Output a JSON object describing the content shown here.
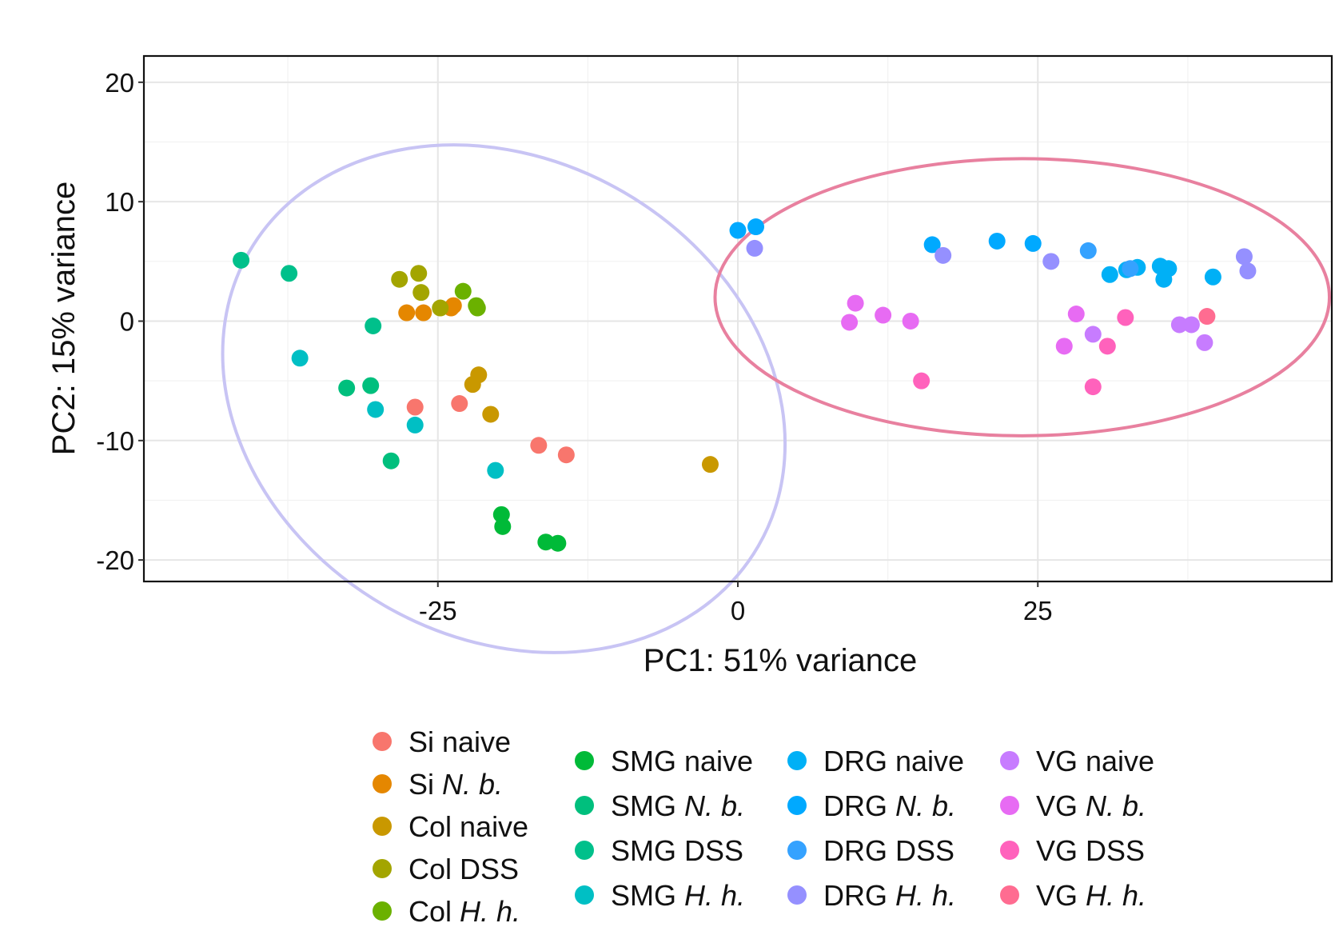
{
  "chart_data": {
    "type": "scatter",
    "xlabel": "PC1: 51% variance",
    "ylabel": "PC2: 15% variance",
    "xlim": [
      -49.5,
      49.5
    ],
    "ylim": [
      -21.8,
      22.2
    ],
    "xticks": [
      -25,
      0,
      25
    ],
    "xtick_labels": [
      "-25",
      "0",
      "25"
    ],
    "yticks": [
      20,
      10,
      0,
      -10,
      -20
    ],
    "ytick_labels": [
      "20",
      "10",
      "0",
      "-10",
      "-20"
    ],
    "grid": true,
    "legend_position": "bottom",
    "series": [
      {
        "name": "Si naive",
        "label_parts": [
          {
            "text": "Si naive",
            "italic": false
          }
        ],
        "color": "#F8766D",
        "x": [
          -26.9,
          -23.2,
          -16.6,
          -14.3
        ],
        "y": [
          -7.2,
          -6.9,
          -10.4,
          -11.2
        ]
      },
      {
        "name": "Si N. b.",
        "label_parts": [
          {
            "text": "Si ",
            "italic": false
          },
          {
            "text": "N. b.",
            "italic": true
          }
        ],
        "color": "#E58700",
        "x": [
          -27.6,
          -26.2,
          -23.7,
          -23.9
        ],
        "y": [
          0.7,
          0.7,
          1.3,
          1.1
        ]
      },
      {
        "name": "Col naive",
        "label_parts": [
          {
            "text": "Col naive",
            "italic": false
          }
        ],
        "color": "#C99800",
        "x": [
          -22.1,
          -21.6,
          -20.6,
          -2.3
        ],
        "y": [
          -5.3,
          -4.5,
          -7.8,
          -12.0
        ]
      },
      {
        "name": "Col DSS",
        "label_parts": [
          {
            "text": "Col DSS",
            "italic": false
          }
        ],
        "color": "#A3A500",
        "x": [
          -28.2,
          -26.6,
          -26.4,
          -24.8
        ],
        "y": [
          3.5,
          4.0,
          2.4,
          1.1
        ]
      },
      {
        "name": "Col H. h.",
        "label_parts": [
          {
            "text": "Col ",
            "italic": false
          },
          {
            "text": "H. h.",
            "italic": true
          }
        ],
        "color": "#6BB100",
        "x": [
          -22.9,
          -21.8,
          -21.7
        ],
        "y": [
          2.5,
          1.3,
          1.1
        ]
      },
      {
        "name": "SMG naive",
        "label_parts": [
          {
            "text": "SMG naive",
            "italic": false
          }
        ],
        "color": "#00BA38",
        "x": [
          -19.7,
          -19.6,
          -16.0,
          -15.0
        ],
        "y": [
          -16.2,
          -17.2,
          -18.5,
          -18.6
        ]
      },
      {
        "name": "SMG N. b.",
        "label_parts": [
          {
            "text": "SMG ",
            "italic": false
          },
          {
            "text": "N. b.",
            "italic": true
          }
        ],
        "color": "#00BF7D",
        "x": [
          -32.6,
          -30.6,
          -28.9
        ],
        "y": [
          -5.6,
          -5.4,
          -11.7
        ]
      },
      {
        "name": "SMG DSS",
        "label_parts": [
          {
            "text": "SMG DSS",
            "italic": false
          }
        ],
        "color": "#00C08B",
        "x": [
          -41.4,
          -37.4,
          -30.4
        ],
        "y": [
          5.1,
          4.0,
          -0.4
        ]
      },
      {
        "name": "SMG H. h.",
        "label_parts": [
          {
            "text": "SMG ",
            "italic": false
          },
          {
            "text": "H. h.",
            "italic": true
          }
        ],
        "color": "#00BFC4",
        "x": [
          -36.5,
          -30.2,
          -26.9,
          -20.2
        ],
        "y": [
          -3.1,
          -7.4,
          -8.7,
          -12.5
        ]
      },
      {
        "name": "DRG naive",
        "label_parts": [
          {
            "text": "DRG naive",
            "italic": false
          }
        ],
        "color": "#00B0F6",
        "x": [
          31.0,
          32.4,
          33.3,
          35.2,
          35.5,
          35.9,
          39.6
        ],
        "y": [
          3.9,
          4.3,
          4.5,
          4.6,
          3.5,
          4.4,
          3.7
        ]
      },
      {
        "name": "DRG N. b.",
        "label_parts": [
          {
            "text": "DRG ",
            "italic": false
          },
          {
            "text": "N. b.",
            "italic": true
          }
        ],
        "color": "#00A9FF",
        "x": [
          0.0,
          1.5,
          16.2,
          21.6,
          24.6
        ],
        "y": [
          7.6,
          7.9,
          6.4,
          6.7,
          6.5
        ]
      },
      {
        "name": "DRG DSS",
        "label_parts": [
          {
            "text": "DRG DSS",
            "italic": false
          }
        ],
        "color": "#35A2FF",
        "x": [
          29.2,
          32.7
        ],
        "y": [
          5.9,
          4.4
        ]
      },
      {
        "name": "DRG H. h.",
        "label_parts": [
          {
            "text": "DRG ",
            "italic": false
          },
          {
            "text": "H. h.",
            "italic": true
          }
        ],
        "color": "#9590FF",
        "x": [
          1.4,
          17.1,
          26.1,
          42.2,
          42.5
        ],
        "y": [
          6.1,
          5.5,
          5.0,
          5.4,
          4.2
        ]
      },
      {
        "name": "VG naive",
        "label_parts": [
          {
            "text": "VG naive",
            "italic": false
          }
        ],
        "color": "#C77CFF",
        "x": [
          29.6,
          36.8,
          37.8,
          38.9
        ],
        "y": [
          -1.1,
          -0.3,
          -0.3,
          -1.8
        ]
      },
      {
        "name": "VG N. b.",
        "label_parts": [
          {
            "text": "VG ",
            "italic": false
          },
          {
            "text": "N. b.",
            "italic": true
          }
        ],
        "color": "#E76BF3",
        "x": [
          9.3,
          9.8,
          12.1,
          14.4,
          27.2,
          28.2
        ],
        "y": [
          -0.1,
          1.5,
          0.5,
          0.0,
          -2.1,
          0.6
        ]
      },
      {
        "name": "VG DSS",
        "label_parts": [
          {
            "text": "VG DSS",
            "italic": false
          }
        ],
        "color": "#FF62BC",
        "x": [
          15.3,
          29.6,
          30.8,
          32.3
        ],
        "y": [
          -5.0,
          -5.5,
          -2.1,
          0.3
        ]
      },
      {
        "name": "VG H. h.",
        "label_parts": [
          {
            "text": "VG ",
            "italic": false
          },
          {
            "text": "H. h.",
            "italic": true
          }
        ],
        "color": "#FF6C91",
        "x": [
          39.1
        ],
        "y": [
          0.4
        ]
      }
    ],
    "ellipses": [
      {
        "name": "left-cluster-ellipse",
        "color": "#C8C4F4",
        "cx": -19.5,
        "cy": -6.5,
        "rx": 24.5,
        "ry": 20.0,
        "angle": 30.0
      },
      {
        "name": "right-cluster-ellipse",
        "color": "#E8809F",
        "cx": 23.7,
        "cy": 2.0,
        "rx": 25.6,
        "ry": 11.6,
        "angle": 0.0
      }
    ]
  }
}
